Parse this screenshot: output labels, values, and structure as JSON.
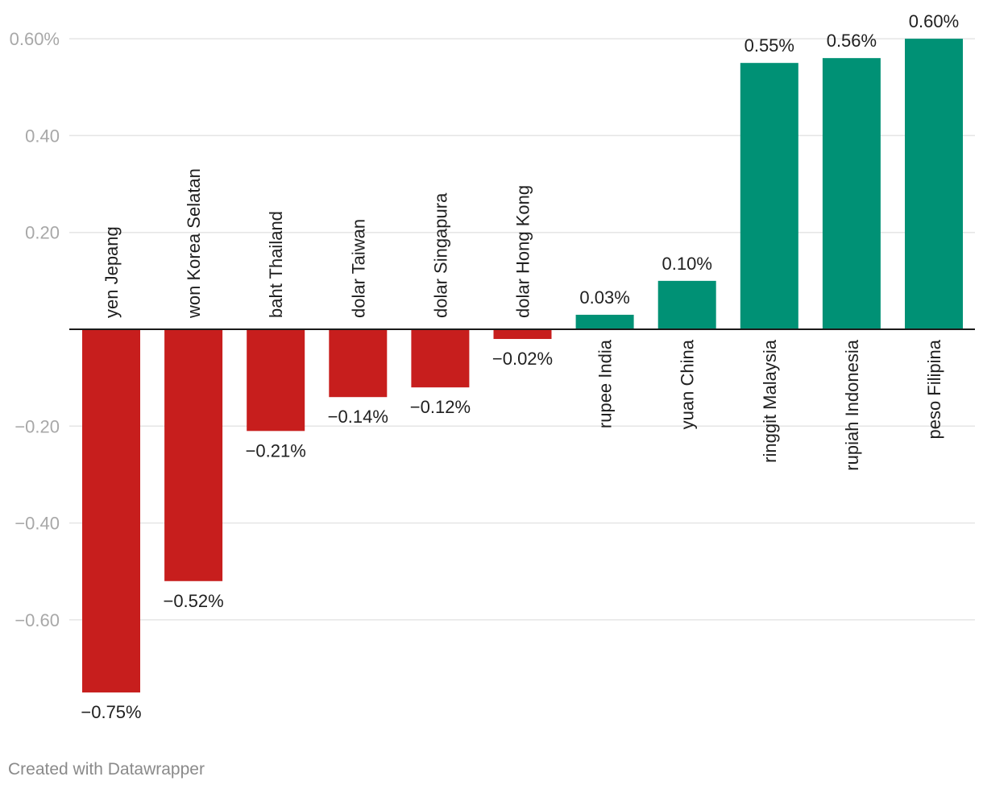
{
  "chart_data": {
    "type": "bar",
    "categories": [
      "yen Jepang",
      "won Korea Selatan",
      "baht Thailand",
      "dolar Taiwan",
      "dolar Singapura",
      "dolar Hong Kong",
      "rupee India",
      "yuan China",
      "ringgit Malaysia",
      "rupiah Indonesia",
      "peso Filipina"
    ],
    "values": [
      -0.75,
      -0.52,
      -0.21,
      -0.14,
      -0.12,
      -0.02,
      0.03,
      0.1,
      0.55,
      0.56,
      0.6
    ],
    "value_labels": [
      "−0.75%",
      "−0.52%",
      "−0.21%",
      "−0.14%",
      "−0.12%",
      "−0.02%",
      "0.03%",
      "0.10%",
      "0.55%",
      "0.56%",
      "0.60%"
    ],
    "y_ticks": [
      {
        "value": 0.6,
        "label": "0.60%"
      },
      {
        "value": 0.4,
        "label": "0.40"
      },
      {
        "value": 0.2,
        "label": "0.20"
      },
      {
        "value": -0.2,
        "label": "−0.20"
      },
      {
        "value": -0.4,
        "label": "−0.40"
      },
      {
        "value": -0.6,
        "label": "−0.60"
      }
    ],
    "ylim": [
      -0.75,
      0.6
    ],
    "grid": true,
    "colors": {
      "negative": "#c71e1d",
      "positive": "#009175"
    },
    "title": "",
    "xlabel": "",
    "ylabel": ""
  },
  "footer": {
    "credit": "Created with Datawrapper"
  }
}
